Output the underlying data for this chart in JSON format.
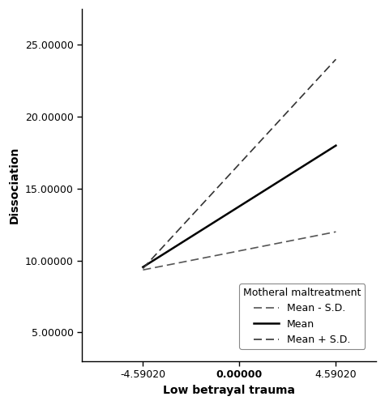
{
  "x_values": [
    -4.5902,
    4.5902
  ],
  "lines": {
    "mean_minus_sd": {
      "y": [
        9.35,
        12.0
      ],
      "label": "Mean - S.D.",
      "linestyle": "dashed",
      "color": "#555555",
      "linewidth": 1.2
    },
    "mean": {
      "y": [
        9.55,
        18.0
      ],
      "label": "Mean",
      "linestyle": "solid",
      "color": "#000000",
      "linewidth": 1.8
    },
    "mean_plus_sd": {
      "y": [
        9.45,
        24.0
      ],
      "label": "Mean + S.D.",
      "linestyle": "dashed",
      "color": "#333333",
      "linewidth": 1.2
    }
  },
  "xlabel": "Low betrayal trauma",
  "ylabel": "Dissociation",
  "xticks": [
    -4.5902,
    0.0,
    4.5902
  ],
  "xticklabels": [
    "-4.59020",
    "0.00000",
    "4.59020"
  ],
  "yticks": [
    5.0,
    10.0,
    15.0,
    20.0,
    25.0
  ],
  "yticklabels": [
    "5.00000",
    "10.00000",
    "15.00000",
    "20.00000",
    "25.00000"
  ],
  "xlim": [
    -7.5,
    6.5
  ],
  "ylim": [
    3.0,
    27.5
  ],
  "legend_title": "Motheral maltreatment",
  "background_color": "#ffffff",
  "axis_color": "#000000",
  "label_fontsize": 10,
  "tick_fontsize": 9,
  "legend_fontsize": 9
}
